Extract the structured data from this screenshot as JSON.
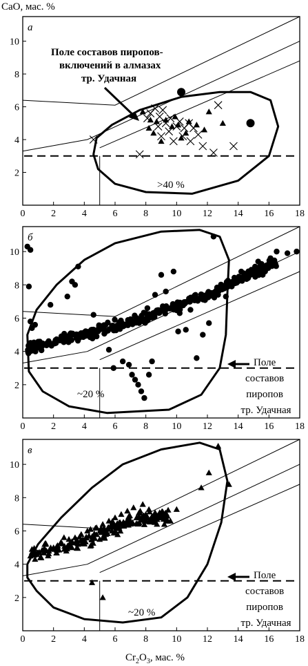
{
  "figure": {
    "y_axis_title": "CaO, мас. %",
    "x_axis_title_parts": [
      "Cr",
      "2",
      "O",
      "3",
      ", мас. %"
    ]
  },
  "chart_data": [
    {
      "type": "scatter",
      "panel_label": "а",
      "xlim": [
        0,
        18
      ],
      "ylim": [
        0,
        11.5
      ],
      "x_ticks": [
        0,
        2,
        4,
        6,
        8,
        10,
        12,
        14,
        16,
        18
      ],
      "y_ticks": [
        2,
        4,
        6,
        8,
        10
      ],
      "dashed_level": 3,
      "field_label": ">40 %",
      "annotation": [
        "Поле составов пиропов-",
        "включений в алмазах",
        "тр. Удачная"
      ],
      "series": [
        {
          "marker": "cross",
          "points": [
            [
              4.6,
              4.0
            ],
            [
              7.6,
              3.1
            ],
            [
              8.1,
              5.3
            ],
            [
              8.3,
              5.6
            ],
            [
              8.6,
              5.9
            ],
            [
              8.8,
              4.8
            ],
            [
              8.9,
              5.4
            ],
            [
              9.0,
              4.2
            ],
            [
              9.1,
              5.8
            ],
            [
              9.3,
              5.0
            ],
            [
              9.5,
              4.5
            ],
            [
              9.6,
              5.3
            ],
            [
              9.8,
              3.9
            ],
            [
              10.0,
              4.8
            ],
            [
              10.2,
              5.1
            ],
            [
              10.4,
              4.2
            ],
            [
              10.5,
              4.7
            ],
            [
              10.8,
              5.0
            ],
            [
              10.9,
              3.9
            ],
            [
              11.1,
              4.7
            ],
            [
              11.4,
              4.3
            ],
            [
              11.7,
              3.6
            ],
            [
              12.4,
              3.2
            ],
            [
              12.7,
              6.1
            ],
            [
              13.7,
              3.6
            ]
          ]
        },
        {
          "marker": "triangle",
          "points": [
            [
              7.8,
              5.7
            ],
            [
              8.2,
              4.7
            ],
            [
              8.3,
              5.2
            ],
            [
              8.5,
              4.4
            ],
            [
              8.7,
              5.1
            ],
            [
              9.0,
              3.9
            ],
            [
              9.3,
              5.2
            ],
            [
              9.7,
              4.8
            ],
            [
              9.9,
              5.4
            ],
            [
              10.1,
              4.9
            ],
            [
              10.3,
              4.1
            ],
            [
              10.6,
              4.4
            ],
            [
              10.8,
              5.1
            ],
            [
              11.3,
              4.9
            ],
            [
              11.8,
              4.6
            ],
            [
              12.1,
              5.7
            ],
            [
              13.0,
              5.0
            ]
          ]
        },
        {
          "marker": "dot",
          "points": [
            [
              10.3,
              6.9
            ],
            [
              14.8,
              5.0
            ]
          ]
        }
      ]
    },
    {
      "type": "scatter",
      "panel_label": "б",
      "xlim": [
        0,
        18
      ],
      "ylim": [
        0,
        11.5
      ],
      "x_ticks": [
        0,
        2,
        4,
        6,
        8,
        10,
        12,
        14,
        16,
        18
      ],
      "y_ticks": [
        2,
        4,
        6,
        8,
        10
      ],
      "dashed_level": 3,
      "field_label": "~20 %",
      "annotation": [
        "Поле",
        "составов",
        "пиропов",
        "тр. Удачная"
      ],
      "series": [
        {
          "marker": "dot",
          "points": [
            [
              0.3,
              10.3
            ],
            [
              0.5,
              10.1
            ],
            [
              0.4,
              7.9
            ],
            [
              0.5,
              5.8
            ],
            [
              0.6,
              5.4
            ],
            [
              0.8,
              5.6
            ],
            [
              1.8,
              6.8
            ],
            [
              2.9,
              7.3
            ],
            [
              3.2,
              8.2
            ],
            [
              3.4,
              8.0
            ],
            [
              3.6,
              9.1
            ],
            [
              4.6,
              6.2
            ],
            [
              4.8,
              4.9
            ],
            [
              5.6,
              4.1
            ],
            [
              5.9,
              3.0
            ],
            [
              6.5,
              3.4
            ],
            [
              6.9,
              3.2
            ],
            [
              7.1,
              2.6
            ],
            [
              7.3,
              2.3
            ],
            [
              7.5,
              2.0
            ],
            [
              7.7,
              1.6
            ],
            [
              7.9,
              1.2
            ],
            [
              8.2,
              2.6
            ],
            [
              8.4,
              3.4
            ],
            [
              8.1,
              6.6
            ],
            [
              8.6,
              7.4
            ],
            [
              9.0,
              8.6
            ],
            [
              9.3,
              7.6
            ],
            [
              9.8,
              8.8
            ],
            [
              10.1,
              5.2
            ],
            [
              10.2,
              6.3
            ],
            [
              10.6,
              5.3
            ],
            [
              10.9,
              6.5
            ],
            [
              11.3,
              3.6
            ],
            [
              11.7,
              5.0
            ],
            [
              12.1,
              5.7
            ],
            [
              12.4,
              10.9
            ],
            [
              13.2,
              7.3
            ],
            [
              14.2,
              8.8
            ],
            [
              15.3,
              9.4
            ],
            [
              16.1,
              9.6
            ],
            [
              16.5,
              10.0
            ],
            [
              17.2,
              9.9
            ],
            [
              17.8,
              10.0
            ]
          ]
        }
      ],
      "dense_band": {
        "description_points_from": [
          [
            0.3,
            4.2
          ],
          [
            2,
            4.6
          ],
          [
            4,
            5.0
          ],
          [
            6,
            5.5
          ],
          [
            8,
            6.0
          ],
          [
            10,
            6.8
          ],
          [
            12,
            7.4
          ],
          [
            13,
            7.9
          ],
          [
            15,
            8.8
          ],
          [
            16.5,
            9.3
          ]
        ],
        "count": 360
      }
    },
    {
      "type": "scatter",
      "panel_label": "в",
      "xlim": [
        0,
        18
      ],
      "ylim": [
        0,
        11.5
      ],
      "x_ticks": [
        0,
        2,
        4,
        6,
        8,
        10,
        12,
        14,
        16,
        18
      ],
      "y_ticks": [
        2,
        4,
        6,
        8,
        10
      ],
      "dashed_level": 3,
      "field_label": "~20 %",
      "annotation": [
        "Поле",
        "составов",
        "пиропов",
        "тр. Удачная"
      ],
      "series": [
        {
          "marker": "triangle",
          "points": [
            [
              0.5,
              4.5
            ],
            [
              0.6,
              4.9
            ],
            [
              0.8,
              4.3
            ],
            [
              1.0,
              4.7
            ],
            [
              1.2,
              4.4
            ],
            [
              1.5,
              5.2
            ],
            [
              1.7,
              4.8
            ],
            [
              2.0,
              5.0
            ],
            [
              2.2,
              4.7
            ],
            [
              2.5,
              5.3
            ],
            [
              2.7,
              4.9
            ],
            [
              3.0,
              5.5
            ],
            [
              3.2,
              5.0
            ],
            [
              3.4,
              5.6
            ],
            [
              3.6,
              5.2
            ],
            [
              3.8,
              5.8
            ],
            [
              4.0,
              5.4
            ],
            [
              4.2,
              6.0
            ],
            [
              4.4,
              5.1
            ],
            [
              4.5,
              2.9
            ],
            [
              4.6,
              5.7
            ],
            [
              4.8,
              6.2
            ],
            [
              5.0,
              5.5
            ],
            [
              5.2,
              2.0
            ],
            [
              5.2,
              6.4
            ],
            [
              5.4,
              5.8
            ],
            [
              5.6,
              6.6
            ],
            [
              5.8,
              6.0
            ],
            [
              6.0,
              6.8
            ],
            [
              6.2,
              6.2
            ],
            [
              6.4,
              7.0
            ],
            [
              6.6,
              6.4
            ],
            [
              6.8,
              7.2
            ],
            [
              7.0,
              6.6
            ],
            [
              7.2,
              7.4
            ],
            [
              7.4,
              6.8
            ],
            [
              7.6,
              7.1
            ],
            [
              7.8,
              7.6
            ],
            [
              8.0,
              7.0
            ],
            [
              8.2,
              7.3
            ],
            [
              8.4,
              6.7
            ],
            [
              8.6,
              7.1
            ],
            [
              8.8,
              6.8
            ],
            [
              9.0,
              7.0
            ],
            [
              9.2,
              6.4
            ],
            [
              9.4,
              6.9
            ],
            [
              9.6,
              6.6
            ],
            [
              10.0,
              7.3
            ],
            [
              11.6,
              8.6
            ],
            [
              12.1,
              9.5
            ],
            [
              12.7,
              11.1
            ],
            [
              13.4,
              8.8
            ]
          ]
        }
      ],
      "dense_band": {
        "description_points_from": [
          [
            0.6,
            4.6
          ],
          [
            2,
            4.9
          ],
          [
            4,
            5.4
          ],
          [
            6,
            6.2
          ],
          [
            8,
            6.8
          ],
          [
            9.5,
            6.9
          ]
        ],
        "count": 190
      }
    }
  ]
}
